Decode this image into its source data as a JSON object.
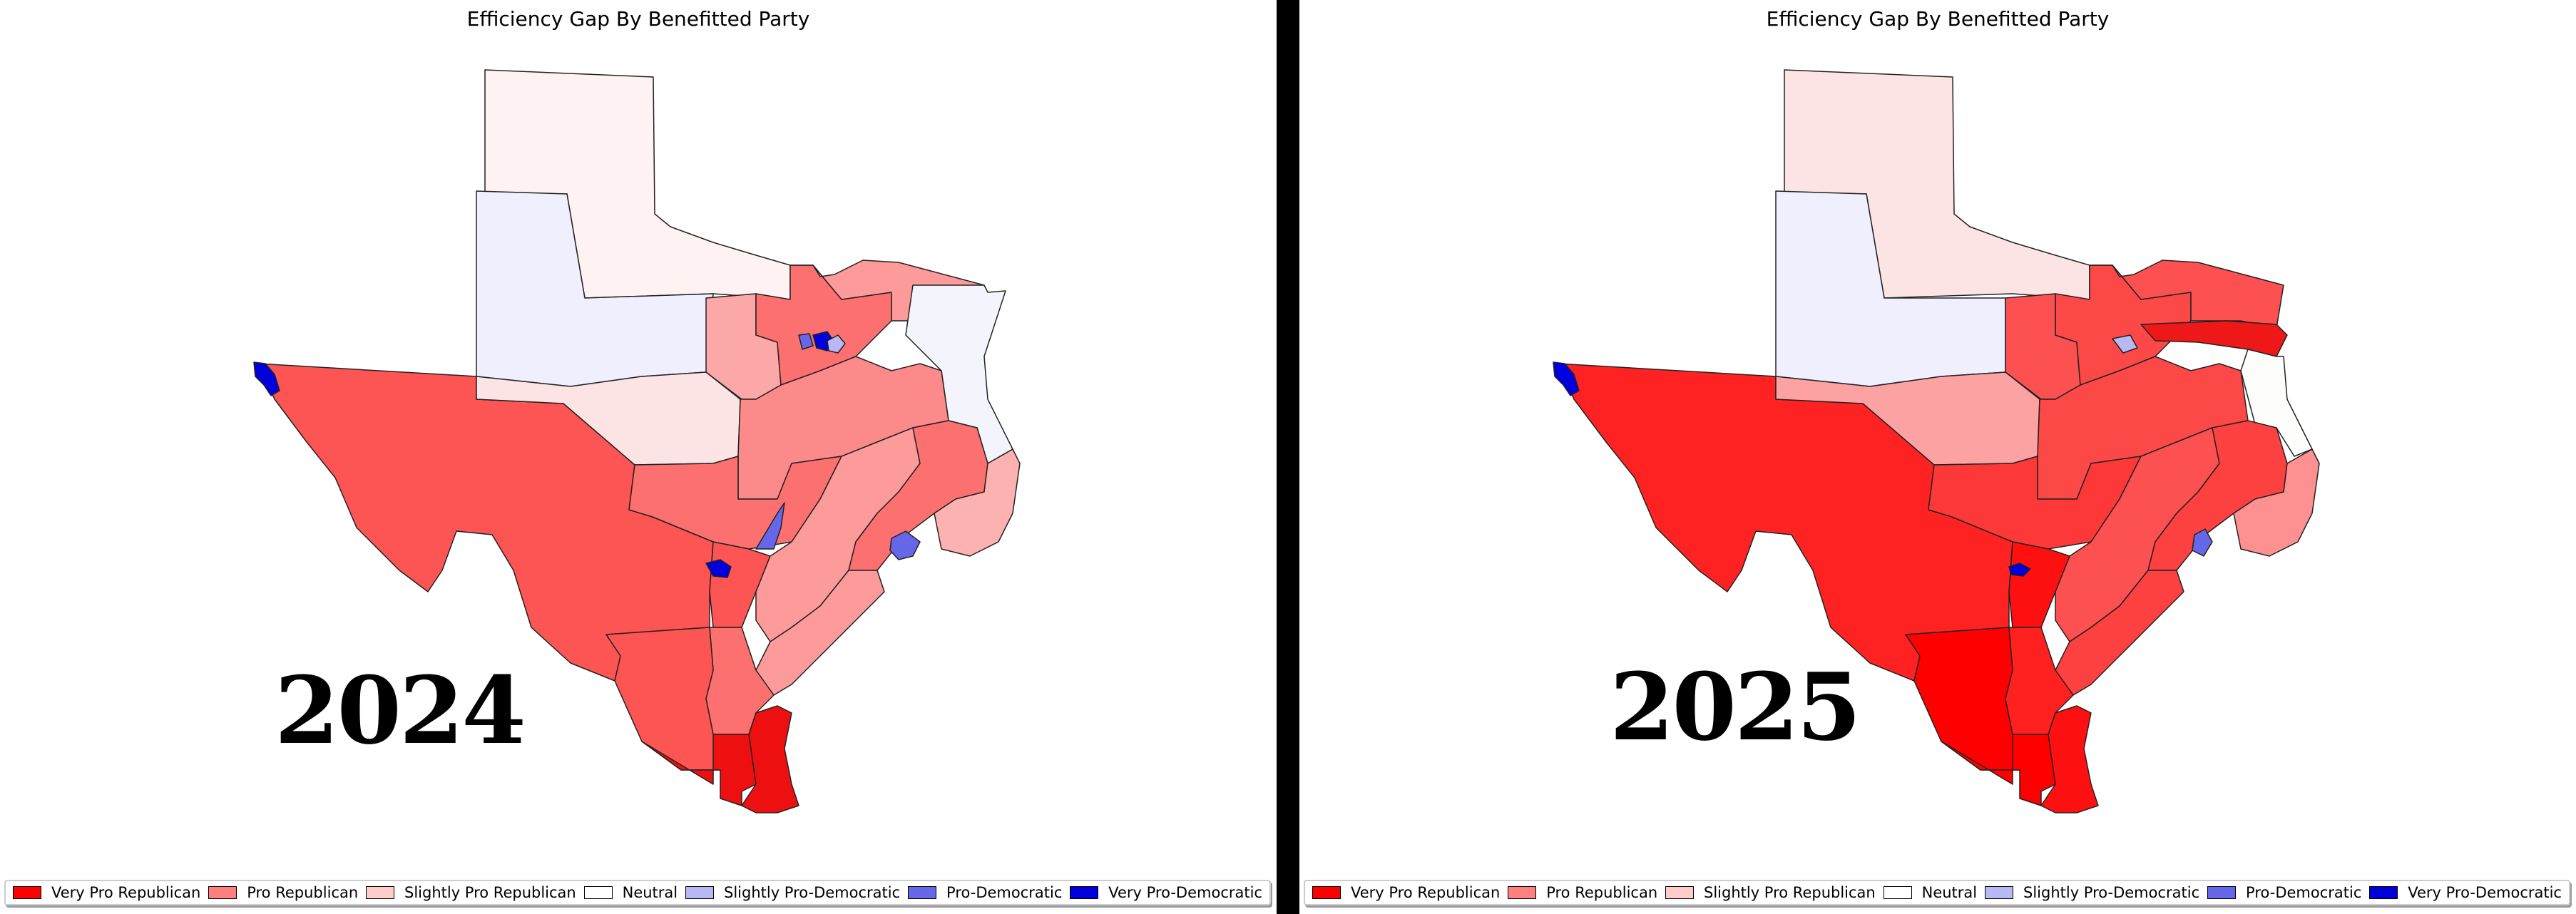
{
  "legend_items": [
    {
      "label": "Very Pro Republican",
      "color": "#ff0000"
    },
    {
      "label": "Pro Republican",
      "color": "#ff8080"
    },
    {
      "label": "Slightly Pro Republican",
      "color": "#ffcccc"
    },
    {
      "label": "Neutral",
      "color": "#ffffff"
    },
    {
      "label": "Slightly Pro-Democratic",
      "color": "#b8b8f5"
    },
    {
      "label": "Pro-Democratic",
      "color": "#6666e8"
    },
    {
      "label": "Very Pro-Democratic",
      "color": "#0000dd"
    }
  ],
  "panels": [
    {
      "title": "Efficiency Gap By Benefitted Party",
      "year": "2024"
    },
    {
      "title": "Efficiency Gap By Benefitted Party",
      "year": "2025"
    }
  ]
}
